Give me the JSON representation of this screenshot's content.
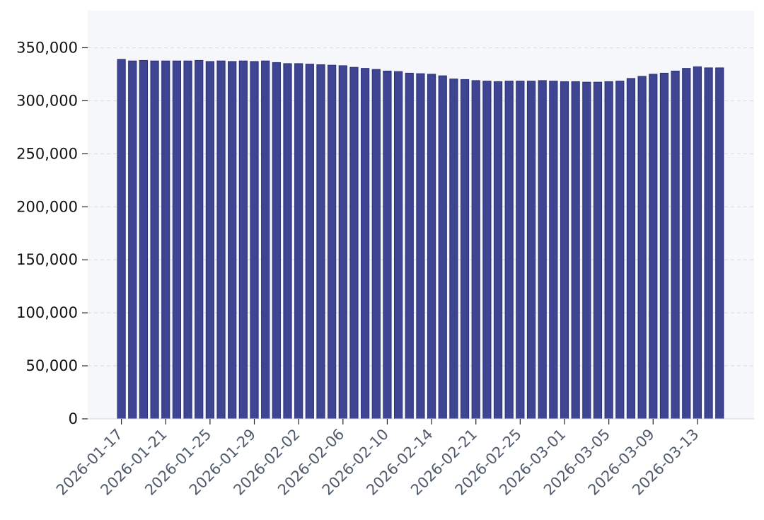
{
  "chart_data": {
    "type": "bar",
    "title": "",
    "xlabel": "",
    "ylabel": "",
    "ylim": [
      0,
      385000
    ],
    "grid": {
      "horizontal": true,
      "vertical": false
    },
    "legend": "none",
    "colors": {
      "bar_fill": "#3f4593",
      "bar_edge": "#2b2f74",
      "plot_background": "#f5f7fa",
      "grid": "#d7dce3",
      "axis": "#d0d5dc",
      "x_tick_text": "#4f5b6d",
      "y_tick_text": "#111111"
    },
    "y_ticks": [
      {
        "value": 0,
        "label": "0"
      },
      {
        "value": 50000,
        "label": "50,000"
      },
      {
        "value": 100000,
        "label": "100,000"
      },
      {
        "value": 150000,
        "label": "150,000"
      },
      {
        "value": 200000,
        "label": "200,000"
      },
      {
        "value": 250000,
        "label": "250,000"
      },
      {
        "value": 300000,
        "label": "300,000"
      },
      {
        "value": 350000,
        "label": "350,000"
      }
    ],
    "x_ticks": [
      {
        "index": 0,
        "label": "2026-01-17"
      },
      {
        "index": 4,
        "label": "2026-01-21"
      },
      {
        "index": 8,
        "label": "2026-01-25"
      },
      {
        "index": 12,
        "label": "2026-01-29"
      },
      {
        "index": 16,
        "label": "2026-02-02"
      },
      {
        "index": 20,
        "label": "2026-02-06"
      },
      {
        "index": 24,
        "label": "2026-02-10"
      },
      {
        "index": 28,
        "label": "2026-02-14"
      },
      {
        "index": 32,
        "label": "2026-02-21"
      },
      {
        "index": 36,
        "label": "2026-02-25"
      },
      {
        "index": 40,
        "label": "2026-03-01"
      },
      {
        "index": 44,
        "label": "2026-03-05"
      },
      {
        "index": 48,
        "label": "2026-03-09"
      },
      {
        "index": 52,
        "label": "2026-03-13"
      }
    ],
    "values": [
      339000,
      337500,
      338000,
      337500,
      337500,
      337500,
      337500,
      338000,
      337000,
      337500,
      337000,
      337500,
      337000,
      337500,
      336000,
      335000,
      335000,
      334500,
      334000,
      333500,
      333000,
      331500,
      330500,
      329500,
      328000,
      327500,
      326000,
      325500,
      325000,
      323500,
      320500,
      320000,
      319000,
      318500,
      318000,
      318500,
      318500,
      318500,
      319000,
      318500,
      318000,
      318000,
      317500,
      317500,
      318000,
      318500,
      321000,
      323000,
      325000,
      326000,
      328000,
      330500,
      332000,
      331000,
      331000
    ]
  }
}
